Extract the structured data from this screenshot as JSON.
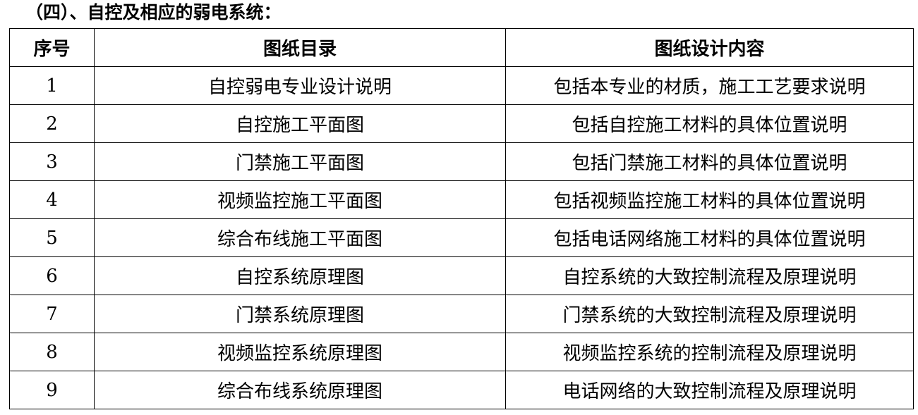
{
  "title": "（四）、自控及相应的弱电系统：",
  "headers": [
    "序号",
    "图纸目录",
    "图纸设计内容"
  ],
  "rows": [
    [
      "1",
      "自控弱电专业设计说明",
      "包括本专业的材质，施工工艺要求说明"
    ],
    [
      "2",
      "自控施工平面图",
      "包括自控施工材料的具体位置说明"
    ],
    [
      "3",
      "门禁施工平面图",
      "包括门禁施工材料的具体位置说明"
    ],
    [
      "4",
      "视频监控施工平面图",
      "包括视频监控施工材料的具体位置说明"
    ],
    [
      "5",
      "综合布线施工平面图",
      "包括电话网络施工材料的具体位置说明"
    ],
    [
      "6",
      "自控系统原理图",
      "自控系统的大致控制流程及原理说明"
    ],
    [
      "7",
      "门禁系统原理图",
      "门禁系统的大致控制流程及原理说明"
    ],
    [
      "8",
      "视频监控系统原理图",
      "视频监控系统的控制流程及原理说明"
    ],
    [
      "9",
      "综合布线系统原理图",
      "电话网络的大致控制流程及原理说明"
    ]
  ]
}
